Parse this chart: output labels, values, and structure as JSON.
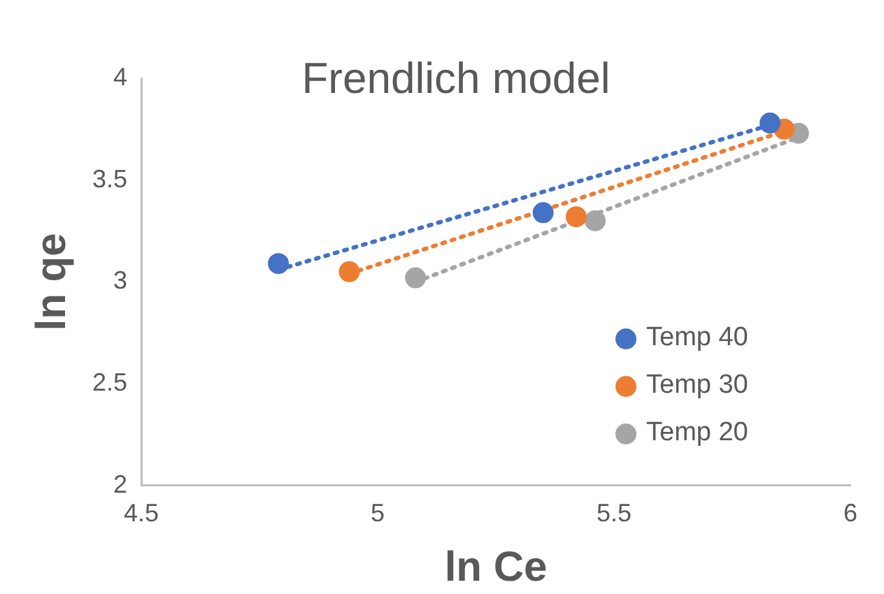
{
  "chart_data": {
    "type": "scatter",
    "title": "Frendlich model",
    "xlabel": "ln Ce",
    "ylabel": "ln qe",
    "xlim": [
      4.5,
      6
    ],
    "xticks": [
      4.5,
      5,
      5.5,
      6
    ],
    "ylim": [
      2,
      4
    ],
    "yticks": [
      2,
      2.5,
      3,
      3.5,
      4
    ],
    "grid": false,
    "legend": "right",
    "marker": "circle",
    "series": [
      {
        "name": "Temp 40",
        "color": "#4472c4",
        "x": [
          4.79,
          5.35,
          5.83
        ],
        "values": [
          3.09,
          3.34,
          3.78
        ]
      },
      {
        "name": "Temp 30",
        "color": "#ed7d31",
        "x": [
          4.94,
          5.42,
          5.86
        ],
        "values": [
          3.05,
          3.32,
          3.75
        ]
      },
      {
        "name": "Temp 20",
        "color": "#a5a5a5",
        "x": [
          5.08,
          5.46,
          5.89
        ],
        "values": [
          3.02,
          3.3,
          3.73
        ]
      },
      {
        "type": "line",
        "color": "#4472c4",
        "x": [
          4.79,
          5.83
        ],
        "values": [
          3.06,
          3.77
        ],
        "marker": "none",
        "line_style": "dotted"
      },
      {
        "type": "line",
        "color": "#ed7d31",
        "x": [
          4.94,
          5.86
        ],
        "values": [
          3.04,
          3.74
        ],
        "marker": "none",
        "line_style": "dotted"
      },
      {
        "type": "line",
        "color": "#a5a5a5",
        "x": [
          5.08,
          5.89
        ],
        "values": [
          3.0,
          3.71
        ],
        "marker": "none",
        "line_style": "dotted"
      }
    ]
  }
}
